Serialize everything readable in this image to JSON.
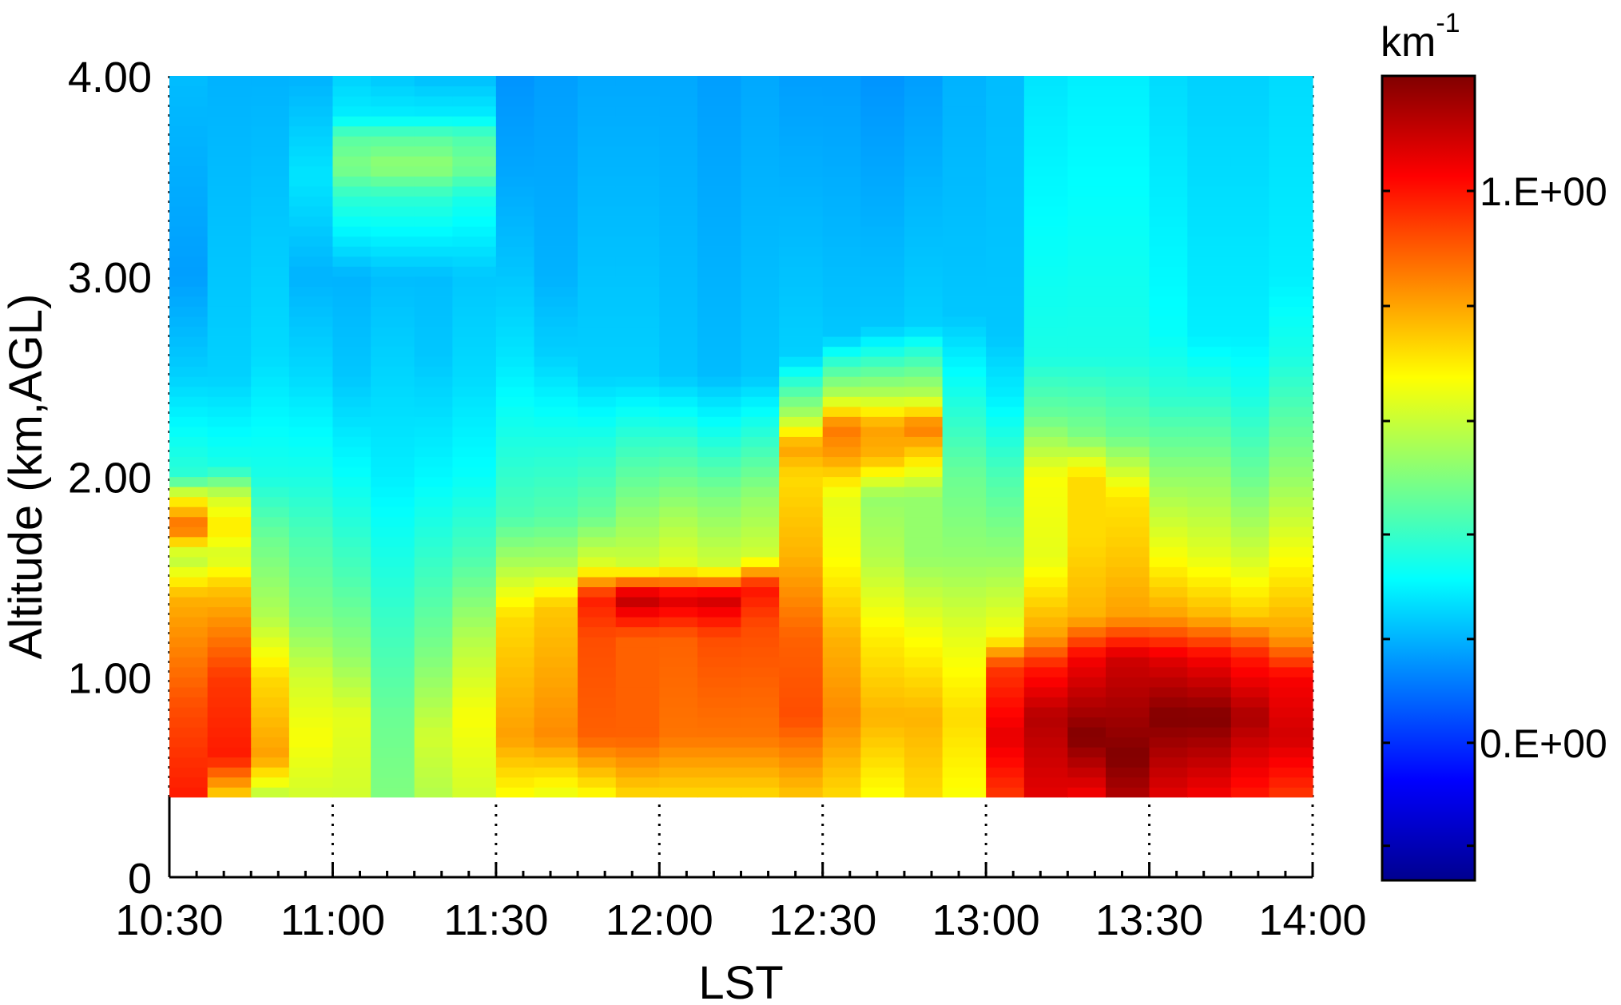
{
  "chart_data": {
    "type": "heatmap",
    "xlabel": "LST",
    "ylabel": "Altitude (km,AGL)",
    "x_ticks": [
      "10:30",
      "11:00",
      "11:30",
      "12:00",
      "12:30",
      "13:00",
      "13:30",
      "14:00"
    ],
    "x_range": [
      "10:30",
      "14:00"
    ],
    "y_ticks": [
      {
        "value": 0,
        "label": "0"
      },
      {
        "value": 1.0,
        "label": "1.00"
      },
      {
        "value": 2.0,
        "label": "2.00"
      },
      {
        "value": 3.0,
        "label": "3.00"
      },
      {
        "value": 4.0,
        "label": "4.00"
      }
    ],
    "ylim": [
      0,
      4.0
    ],
    "data_y_range": [
      0.4,
      4.0
    ],
    "grid": "x-only dotted, below data",
    "colorbar": {
      "unit_base": "km",
      "unit_exp": "-1",
      "colormap": "jet",
      "tick_labels": [
        {
          "label": "1.E+00",
          "level": 0.857
        },
        {
          "label": "0.E+00",
          "level": 0.171
        }
      ],
      "minor_tick_levels": [
        0.043,
        0.171,
        0.3,
        0.43,
        0.571,
        0.714,
        0.857
      ]
    },
    "x": [
      "10:30",
      "10:37",
      "10:45",
      "10:52",
      "11:00",
      "11:07",
      "11:15",
      "11:22",
      "11:30",
      "11:37",
      "11:45",
      "11:52",
      "12:00",
      "12:07",
      "12:15",
      "12:22",
      "12:30",
      "12:37",
      "12:45",
      "12:52",
      "13:00",
      "13:07",
      "13:15",
      "13:22",
      "13:30",
      "13:37",
      "13:45",
      "13:52"
    ],
    "altitudes": [
      0.4,
      4.0
    ],
    "columns": [
      [
        [
          0.4,
          0.85
        ],
        [
          0.85,
          0.8
        ],
        [
          1.4,
          0.7
        ],
        [
          1.6,
          0.55
        ],
        [
          1.75,
          0.78
        ],
        [
          1.9,
          0.62
        ],
        [
          2.0,
          0.42
        ],
        [
          2.5,
          0.33
        ],
        [
          3.0,
          0.28
        ],
        [
          4.0,
          0.31
        ]
      ],
      [
        [
          0.4,
          0.66
        ],
        [
          0.6,
          0.85
        ],
        [
          1.0,
          0.82
        ],
        [
          1.45,
          0.68
        ],
        [
          1.6,
          0.58
        ],
        [
          1.75,
          0.65
        ],
        [
          1.9,
          0.58
        ],
        [
          2.05,
          0.4
        ],
        [
          2.5,
          0.33
        ],
        [
          4.0,
          0.3
        ]
      ],
      [
        [
          0.4,
          0.55
        ],
        [
          0.6,
          0.72
        ],
        [
          1.0,
          0.66
        ],
        [
          1.3,
          0.55
        ],
        [
          1.7,
          0.48
        ],
        [
          2.0,
          0.4
        ],
        [
          2.6,
          0.34
        ],
        [
          4.0,
          0.3
        ]
      ],
      [
        [
          0.4,
          0.58
        ],
        [
          0.7,
          0.62
        ],
        [
          1.0,
          0.58
        ],
        [
          1.3,
          0.5
        ],
        [
          1.7,
          0.45
        ],
        [
          2.0,
          0.4
        ],
        [
          2.5,
          0.34
        ],
        [
          3.0,
          0.3
        ],
        [
          3.5,
          0.35
        ],
        [
          4.0,
          0.3
        ]
      ],
      [
        [
          0.4,
          0.58
        ],
        [
          0.8,
          0.6
        ],
        [
          1.1,
          0.52
        ],
        [
          1.5,
          0.45
        ],
        [
          2.0,
          0.38
        ],
        [
          2.5,
          0.32
        ],
        [
          3.0,
          0.3
        ],
        [
          3.4,
          0.42
        ],
        [
          3.55,
          0.5
        ],
        [
          3.7,
          0.46
        ],
        [
          3.8,
          0.36
        ],
        [
          4.0,
          0.33
        ]
      ],
      [
        [
          0.4,
          0.5
        ],
        [
          0.8,
          0.48
        ],
        [
          1.2,
          0.44
        ],
        [
          1.6,
          0.4
        ],
        [
          2.0,
          0.36
        ],
        [
          2.6,
          0.33
        ],
        [
          3.0,
          0.31
        ],
        [
          3.4,
          0.42
        ],
        [
          3.55,
          0.52
        ],
        [
          3.7,
          0.46
        ],
        [
          3.8,
          0.36
        ],
        [
          4.0,
          0.32
        ]
      ],
      [
        [
          0.4,
          0.55
        ],
        [
          0.7,
          0.58
        ],
        [
          1.1,
          0.5
        ],
        [
          1.5,
          0.44
        ],
        [
          2.0,
          0.37
        ],
        [
          2.6,
          0.32
        ],
        [
          3.0,
          0.31
        ],
        [
          3.4,
          0.42
        ],
        [
          3.55,
          0.52
        ],
        [
          3.7,
          0.46
        ],
        [
          3.8,
          0.36
        ],
        [
          4.0,
          0.31
        ]
      ],
      [
        [
          0.4,
          0.58
        ],
        [
          0.8,
          0.62
        ],
        [
          1.2,
          0.55
        ],
        [
          1.6,
          0.45
        ],
        [
          2.0,
          0.38
        ],
        [
          2.5,
          0.34
        ],
        [
          3.0,
          0.32
        ],
        [
          3.4,
          0.4
        ],
        [
          3.55,
          0.49
        ],
        [
          3.7,
          0.45
        ],
        [
          3.8,
          0.36
        ],
        [
          4.0,
          0.31
        ]
      ],
      [
        [
          0.4,
          0.62
        ],
        [
          0.7,
          0.72
        ],
        [
          1.3,
          0.66
        ],
        [
          1.55,
          0.55
        ],
        [
          1.8,
          0.45
        ],
        [
          2.2,
          0.4
        ],
        [
          2.6,
          0.35
        ],
        [
          3.0,
          0.32
        ],
        [
          3.5,
          0.29
        ],
        [
          4.0,
          0.27
        ]
      ],
      [
        [
          0.4,
          0.6
        ],
        [
          0.7,
          0.74
        ],
        [
          1.35,
          0.68
        ],
        [
          1.55,
          0.55
        ],
        [
          1.8,
          0.46
        ],
        [
          2.2,
          0.4
        ],
        [
          2.6,
          0.33
        ],
        [
          3.0,
          0.3
        ],
        [
          4.0,
          0.28
        ]
      ],
      [
        [
          0.4,
          0.62
        ],
        [
          0.7,
          0.78
        ],
        [
          1.2,
          0.8
        ],
        [
          1.4,
          0.85
        ],
        [
          1.55,
          0.6
        ],
        [
          1.8,
          0.48
        ],
        [
          2.2,
          0.4
        ],
        [
          2.5,
          0.33
        ],
        [
          4.0,
          0.29
        ]
      ],
      [
        [
          0.4,
          0.66
        ],
        [
          0.7,
          0.78
        ],
        [
          1.2,
          0.78
        ],
        [
          1.4,
          0.95
        ],
        [
          1.55,
          0.58
        ],
        [
          1.8,
          0.52
        ],
        [
          2.2,
          0.42
        ],
        [
          2.5,
          0.33
        ],
        [
          4.0,
          0.29
        ]
      ],
      [
        [
          0.4,
          0.66
        ],
        [
          0.7,
          0.76
        ],
        [
          1.2,
          0.78
        ],
        [
          1.4,
          0.92
        ],
        [
          1.55,
          0.6
        ],
        [
          1.8,
          0.54
        ],
        [
          2.2,
          0.42
        ],
        [
          2.5,
          0.32
        ],
        [
          4.0,
          0.29
        ]
      ],
      [
        [
          0.4,
          0.66
        ],
        [
          0.7,
          0.76
        ],
        [
          1.2,
          0.8
        ],
        [
          1.4,
          0.93
        ],
        [
          1.55,
          0.58
        ],
        [
          1.9,
          0.5
        ],
        [
          2.2,
          0.4
        ],
        [
          2.5,
          0.31
        ],
        [
          4.0,
          0.28
        ]
      ],
      [
        [
          0.4,
          0.66
        ],
        [
          0.7,
          0.76
        ],
        [
          1.25,
          0.8
        ],
        [
          1.45,
          0.86
        ],
        [
          1.6,
          0.58
        ],
        [
          1.9,
          0.52
        ],
        [
          2.2,
          0.42
        ],
        [
          2.5,
          0.32
        ],
        [
          4.0,
          0.29
        ]
      ],
      [
        [
          0.4,
          0.68
        ],
        [
          0.8,
          0.8
        ],
        [
          1.2,
          0.78
        ],
        [
          1.6,
          0.7
        ],
        [
          2.0,
          0.66
        ],
        [
          2.15,
          0.72
        ],
        [
          2.3,
          0.55
        ],
        [
          2.5,
          0.4
        ],
        [
          2.6,
          0.33
        ],
        [
          4.0,
          0.28
        ]
      ],
      [
        [
          0.4,
          0.66
        ],
        [
          0.8,
          0.74
        ],
        [
          1.2,
          0.7
        ],
        [
          1.6,
          0.62
        ],
        [
          1.9,
          0.6
        ],
        [
          2.1,
          0.72
        ],
        [
          2.25,
          0.76
        ],
        [
          2.4,
          0.56
        ],
        [
          2.6,
          0.4
        ],
        [
          2.7,
          0.32
        ],
        [
          4.0,
          0.28
        ]
      ],
      [
        [
          0.4,
          0.62
        ],
        [
          0.8,
          0.7
        ],
        [
          1.2,
          0.64
        ],
        [
          1.6,
          0.55
        ],
        [
          1.9,
          0.52
        ],
        [
          2.1,
          0.7
        ],
        [
          2.25,
          0.72
        ],
        [
          2.4,
          0.56
        ],
        [
          2.65,
          0.38
        ],
        [
          2.75,
          0.32
        ],
        [
          4.0,
          0.27
        ]
      ],
      [
        [
          0.4,
          0.66
        ],
        [
          0.8,
          0.7
        ],
        [
          1.2,
          0.62
        ],
        [
          1.6,
          0.52
        ],
        [
          1.9,
          0.52
        ],
        [
          2.1,
          0.66
        ],
        [
          2.25,
          0.76
        ],
        [
          2.4,
          0.56
        ],
        [
          2.65,
          0.4
        ],
        [
          2.75,
          0.33
        ],
        [
          4.0,
          0.28
        ]
      ],
      [
        [
          0.4,
          0.62
        ],
        [
          0.8,
          0.66
        ],
        [
          1.2,
          0.6
        ],
        [
          1.6,
          0.52
        ],
        [
          2.0,
          0.48
        ],
        [
          2.3,
          0.42
        ],
        [
          2.6,
          0.36
        ],
        [
          2.8,
          0.32
        ],
        [
          4.0,
          0.3
        ]
      ],
      [
        [
          0.4,
          0.82
        ],
        [
          0.7,
          0.9
        ],
        [
          1.05,
          0.82
        ],
        [
          1.2,
          0.62
        ],
        [
          1.6,
          0.52
        ],
        [
          2.0,
          0.45
        ],
        [
          2.4,
          0.36
        ],
        [
          2.7,
          0.32
        ],
        [
          4.0,
          0.31
        ]
      ],
      [
        [
          0.4,
          0.9
        ],
        [
          0.8,
          0.95
        ],
        [
          1.05,
          0.85
        ],
        [
          1.2,
          0.72
        ],
        [
          1.6,
          0.6
        ],
        [
          2.0,
          0.62
        ],
        [
          2.3,
          0.48
        ],
        [
          2.6,
          0.4
        ],
        [
          4.0,
          0.35
        ]
      ],
      [
        [
          0.4,
          0.88
        ],
        [
          0.7,
          1.0
        ],
        [
          1.1,
          0.88
        ],
        [
          1.3,
          0.7
        ],
        [
          1.7,
          0.66
        ],
        [
          2.0,
          0.66
        ],
        [
          2.2,
          0.5
        ],
        [
          2.6,
          0.4
        ],
        [
          4.0,
          0.36
        ]
      ],
      [
        [
          0.4,
          0.95
        ],
        [
          0.6,
          1.0
        ],
        [
          1.1,
          0.92
        ],
        [
          1.3,
          0.72
        ],
        [
          1.6,
          0.68
        ],
        [
          1.9,
          0.65
        ],
        [
          2.2,
          0.48
        ],
        [
          2.6,
          0.4
        ],
        [
          4.0,
          0.36
        ]
      ],
      [
        [
          0.4,
          0.9
        ],
        [
          0.8,
          1.0
        ],
        [
          1.1,
          0.9
        ],
        [
          1.3,
          0.72
        ],
        [
          1.6,
          0.62
        ],
        [
          2.0,
          0.52
        ],
        [
          2.4,
          0.42
        ],
        [
          2.7,
          0.38
        ],
        [
          4.0,
          0.34
        ]
      ],
      [
        [
          0.4,
          0.88
        ],
        [
          0.8,
          1.0
        ],
        [
          1.1,
          0.88
        ],
        [
          1.3,
          0.7
        ],
        [
          1.6,
          0.6
        ],
        [
          2.0,
          0.52
        ],
        [
          2.4,
          0.42
        ],
        [
          2.7,
          0.36
        ],
        [
          4.0,
          0.33
        ]
      ],
      [
        [
          0.4,
          0.85
        ],
        [
          0.8,
          0.96
        ],
        [
          1.1,
          0.85
        ],
        [
          1.3,
          0.68
        ],
        [
          1.6,
          0.58
        ],
        [
          2.0,
          0.48
        ],
        [
          2.4,
          0.4
        ],
        [
          2.7,
          0.36
        ],
        [
          4.0,
          0.33
        ]
      ],
      [
        [
          0.4,
          0.82
        ],
        [
          0.7,
          0.92
        ],
        [
          1.0,
          0.88
        ],
        [
          1.2,
          0.72
        ],
        [
          1.6,
          0.62
        ],
        [
          2.0,
          0.52
        ],
        [
          2.3,
          0.46
        ],
        [
          2.6,
          0.4
        ],
        [
          3.0,
          0.36
        ],
        [
          4.0,
          0.34
        ]
      ]
    ]
  }
}
